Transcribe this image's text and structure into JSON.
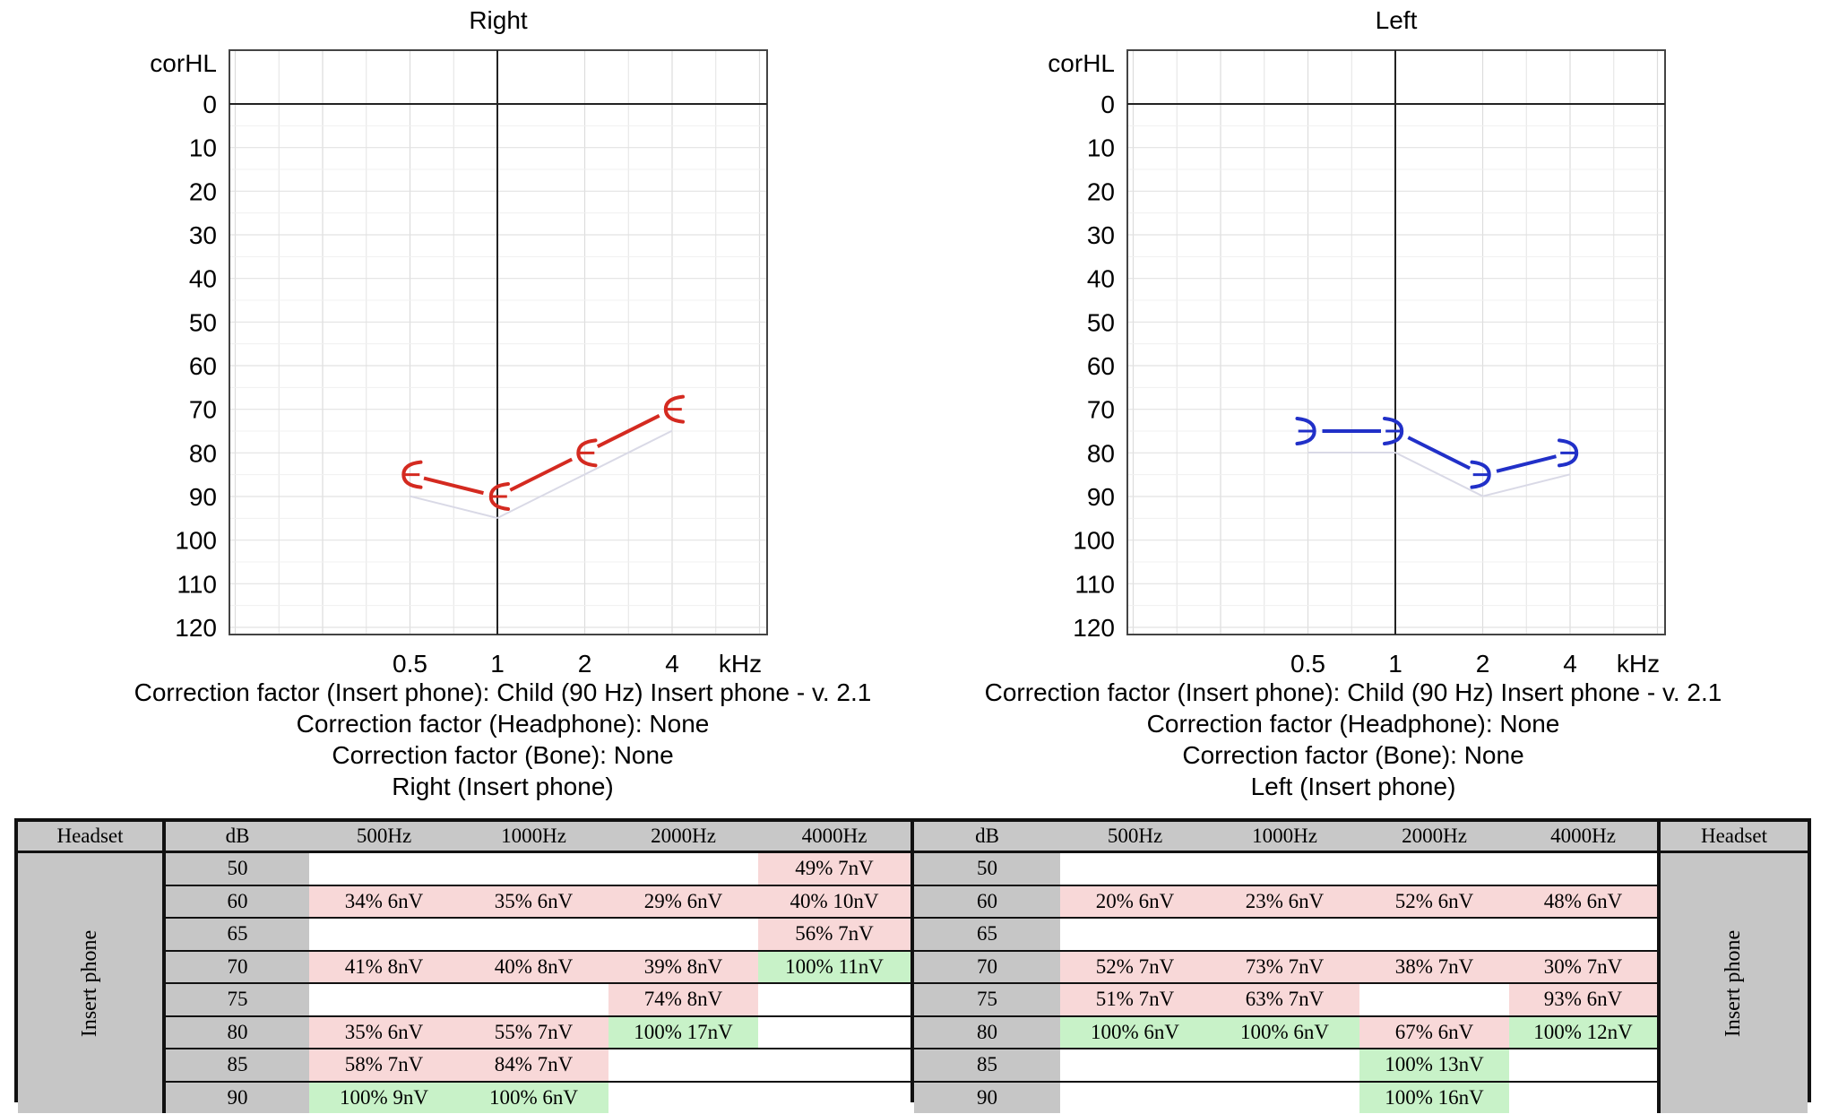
{
  "chart_data": [
    {
      "type": "line",
      "title": "Right",
      "ylabel": "corHL",
      "xlabel": "kHz",
      "x_ticks": [
        "0.5",
        "1",
        "2",
        "4"
      ],
      "y_ticks": [
        "0",
        "10",
        "20",
        "30",
        "40",
        "50",
        "60",
        "70",
        "80",
        "90",
        "100",
        "110",
        "120"
      ],
      "ylim": [
        0,
        120
      ],
      "y_inverted": true,
      "grid": true,
      "series": [
        {
          "x": [
            0.5,
            1,
            2,
            4
          ],
          "y": [
            85,
            90,
            80,
            70
          ],
          "color": "#d42a20",
          "marker": "bracket-left"
        }
      ],
      "captions": [
        "Correction factor (Insert phone): Child (90 Hz) Insert phone - v. 2.1",
        "Correction factor (Headphone): None",
        "Correction factor (Bone): None",
        "Right (Insert phone)"
      ]
    },
    {
      "type": "line",
      "title": "Left",
      "ylabel": "corHL",
      "xlabel": "kHz",
      "x_ticks": [
        "0.5",
        "1",
        "2",
        "4"
      ],
      "y_ticks": [
        "0",
        "10",
        "20",
        "30",
        "40",
        "50",
        "60",
        "70",
        "80",
        "90",
        "100",
        "110",
        "120"
      ],
      "ylim": [
        0,
        120
      ],
      "y_inverted": true,
      "grid": true,
      "series": [
        {
          "x": [
            0.5,
            1,
            2,
            4
          ],
          "y": [
            75,
            75,
            85,
            80
          ],
          "color": "#2130c8",
          "marker": "bracket-right"
        }
      ],
      "captions": [
        "Correction factor (Insert phone): Child (90 Hz) Insert phone - v. 2.1",
        "Correction factor (Headphone): None",
        "Correction factor (Bone): None",
        "Left (Insert phone)"
      ]
    }
  ],
  "tables": [
    {
      "headers": [
        "Headset",
        "dB",
        "500Hz",
        "1000Hz",
        "2000Hz",
        "4000Hz"
      ],
      "headset": "Insert phone",
      "rows": [
        {
          "db": "50",
          "cells": [
            "",
            "",
            "",
            "49%  7nV"
          ],
          "status": [
            "",
            "",
            "",
            "red"
          ]
        },
        {
          "db": "60",
          "cells": [
            "34%  6nV",
            "35%  6nV",
            "29%  6nV",
            "40%  10nV"
          ],
          "status": [
            "red",
            "red",
            "red",
            "red"
          ]
        },
        {
          "db": "65",
          "cells": [
            "",
            "",
            "",
            "56%  7nV"
          ],
          "status": [
            "",
            "",
            "",
            "red"
          ]
        },
        {
          "db": "70",
          "cells": [
            "41%  8nV",
            "40%  8nV",
            "39%  8nV",
            "100%  11nV"
          ],
          "status": [
            "red",
            "red",
            "red",
            "green"
          ]
        },
        {
          "db": "75",
          "cells": [
            "",
            "",
            "74%  8nV",
            ""
          ],
          "status": [
            "",
            "",
            "red",
            ""
          ]
        },
        {
          "db": "80",
          "cells": [
            "35%  6nV",
            "55%  7nV",
            "100%  17nV",
            ""
          ],
          "status": [
            "red",
            "red",
            "green",
            ""
          ]
        },
        {
          "db": "85",
          "cells": [
            "58%  7nV",
            "84%  7nV",
            "",
            ""
          ],
          "status": [
            "red",
            "red",
            "",
            ""
          ]
        },
        {
          "db": "90",
          "cells": [
            "100%  9nV",
            "100%  6nV",
            "",
            ""
          ],
          "status": [
            "green",
            "green",
            "",
            ""
          ]
        }
      ]
    },
    {
      "headers": [
        "dB",
        "500Hz",
        "1000Hz",
        "2000Hz",
        "4000Hz",
        "Headset"
      ],
      "headset": "Insert phone",
      "rows": [
        {
          "db": "50",
          "cells": [
            "",
            "",
            "",
            ""
          ],
          "status": [
            "",
            "",
            "",
            ""
          ]
        },
        {
          "db": "60",
          "cells": [
            "20%  6nV",
            "23%  6nV",
            "52%  6nV",
            "48%  6nV"
          ],
          "status": [
            "red",
            "red",
            "red",
            "red"
          ]
        },
        {
          "db": "65",
          "cells": [
            "",
            "",
            "",
            ""
          ],
          "status": [
            "",
            "",
            "",
            ""
          ]
        },
        {
          "db": "70",
          "cells": [
            "52%  7nV",
            "73%  7nV",
            "38%  7nV",
            "30%  7nV"
          ],
          "status": [
            "red",
            "red",
            "red",
            "red"
          ]
        },
        {
          "db": "75",
          "cells": [
            "51%  7nV",
            "63%  7nV",
            "",
            "93%  6nV"
          ],
          "status": [
            "red",
            "red",
            "",
            "red"
          ]
        },
        {
          "db": "80",
          "cells": [
            "100%  6nV",
            "100%  6nV",
            "67%  6nV",
            "100%  12nV"
          ],
          "status": [
            "green",
            "green",
            "red",
            "green"
          ]
        },
        {
          "db": "85",
          "cells": [
            "",
            "",
            "100%  13nV",
            ""
          ],
          "status": [
            "",
            "",
            "green",
            ""
          ]
        },
        {
          "db": "90",
          "cells": [
            "",
            "",
            "100%  16nV",
            ""
          ],
          "status": [
            "",
            "",
            "green",
            ""
          ]
        }
      ]
    }
  ]
}
